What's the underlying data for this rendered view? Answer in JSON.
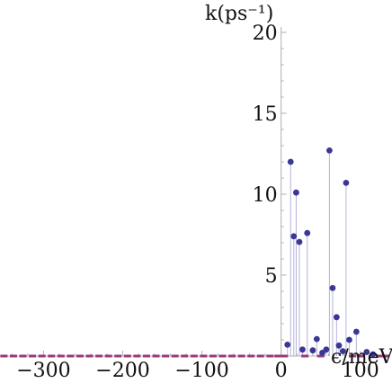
{
  "chart_data": {
    "type": "scatter",
    "title": "",
    "ylabel": "k(ps⁻¹)",
    "xlabel": "ϵ/meV",
    "xlim": [
      -355,
      140
    ],
    "ylim": [
      0,
      20
    ],
    "x_ticks": [
      -300,
      -200,
      -100,
      0,
      100
    ],
    "x_tick_labels": [
      "−300",
      "−200",
      "−100",
      "0",
      "100"
    ],
    "y_ticks": [
      5,
      10,
      15,
      20
    ],
    "y_tick_labels": [
      "5",
      "10",
      "15",
      "20"
    ],
    "grid": false,
    "stems": true,
    "colors": {
      "points": "#3b3794",
      "stems": "#b4b4dc",
      "baseline_dashes": "#9b3a7a",
      "axis": "#b0b0b0"
    },
    "points": [
      {
        "x": 8,
        "y": 0.7
      },
      {
        "x": 12,
        "y": 12.0
      },
      {
        "x": 16,
        "y": 7.4
      },
      {
        "x": 19,
        "y": 10.1
      },
      {
        "x": 23,
        "y": 7.05
      },
      {
        "x": 27,
        "y": 0.4
      },
      {
        "x": 33,
        "y": 7.6
      },
      {
        "x": 40,
        "y": 0.35
      },
      {
        "x": 45,
        "y": 1.05
      },
      {
        "x": 52,
        "y": 0.2
      },
      {
        "x": 57,
        "y": 0.4
      },
      {
        "x": 61,
        "y": 12.7
      },
      {
        "x": 65,
        "y": 4.2
      },
      {
        "x": 70,
        "y": 2.4
      },
      {
        "x": 73,
        "y": 0.65
      },
      {
        "x": 78,
        "y": 0.3
      },
      {
        "x": 82,
        "y": 10.7
      },
      {
        "x": 86,
        "y": 1.0
      },
      {
        "x": 95,
        "y": 1.5
      },
      {
        "x": 108,
        "y": 0.25
      },
      {
        "x": 116,
        "y": 0.1
      }
    ],
    "baseline_points_x": [
      -350,
      -338,
      -326,
      -314,
      -302,
      -290,
      -278,
      -266,
      -254,
      -242,
      -230,
      -218,
      -206,
      -194,
      -182,
      -170,
      -158,
      -146,
      -134,
      -122,
      -110,
      -98,
      -86,
      -74,
      -62,
      -50,
      -38,
      -26,
      -14,
      -4,
      4,
      30,
      50,
      90,
      100,
      125,
      132
    ]
  }
}
